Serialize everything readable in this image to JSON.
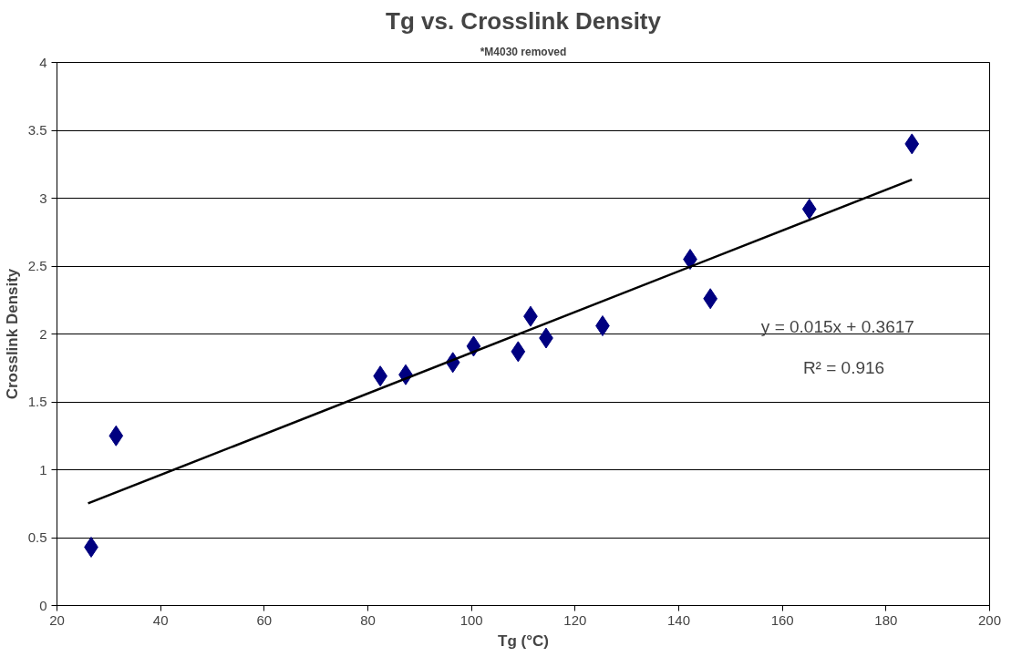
{
  "chart_data": {
    "type": "scatter",
    "title": "Tg vs. Crosslink Density",
    "subtitle": "*M4030 removed",
    "xlabel": "Tg (°C)",
    "ylabel": "Crosslink Density",
    "xlim": [
      20,
      200
    ],
    "xticks": [
      20,
      40,
      60,
      80,
      100,
      120,
      140,
      160,
      180,
      200
    ],
    "ylim": [
      0,
      4
    ],
    "yticks": [
      0,
      0.5,
      1,
      1.5,
      2,
      2.5,
      3,
      3.5,
      4
    ],
    "grid": "y",
    "marker": "diamond",
    "series": [
      {
        "color": "#000080",
        "x": [
          26.6,
          31.4,
          82.4,
          87.3,
          96.4,
          100.4,
          109.0,
          111.4,
          114.4,
          125.3,
          142.2,
          146.1,
          165.2,
          185.0
        ],
        "values": [
          0.43,
          1.25,
          1.69,
          1.7,
          1.79,
          1.91,
          1.87,
          2.13,
          1.97,
          2.06,
          2.55,
          2.26,
          2.92,
          3.4
        ]
      },
      {
        "type": "line",
        "color": "#000000",
        "line_style": "solid",
        "marker": "none",
        "x": [
          26,
          185
        ],
        "values": [
          0.752,
          3.137
        ]
      }
    ],
    "annotations": [
      "y = 0.015x + 0.3617",
      "R² = 0.916"
    ]
  }
}
